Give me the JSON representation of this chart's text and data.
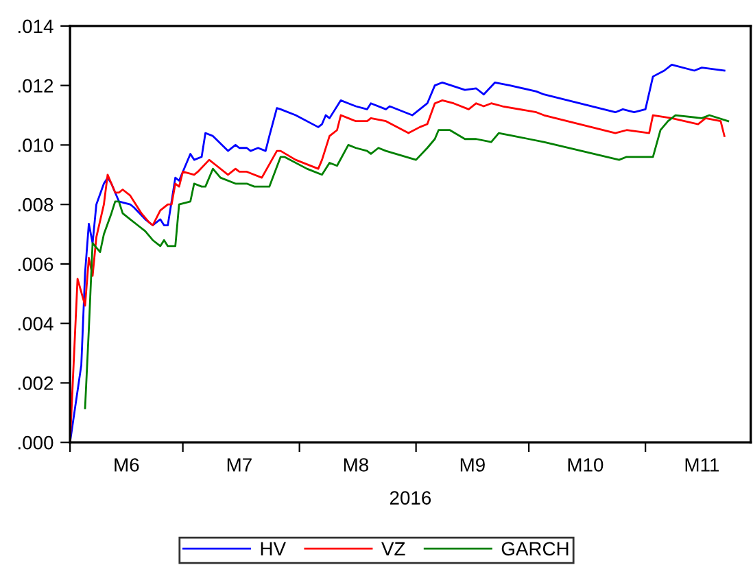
{
  "chart_data": {
    "type": "line",
    "xlabel": "2016",
    "xlim": [
      "2016-06-01",
      "2016-11-29"
    ],
    "ylim": [
      0,
      0.014
    ],
    "xticks": [
      {
        "value": "2016-06-01",
        "label": null
      },
      {
        "value": "2016-07-01",
        "label": null
      },
      {
        "value": "2016-08-01",
        "label": null
      },
      {
        "value": "2016-09-01",
        "label": null
      },
      {
        "value": "2016-10-01",
        "label": null
      },
      {
        "value": "2016-11-01",
        "label": null
      },
      {
        "value": "2016-06-16",
        "label": "M6"
      },
      {
        "value": "2016-07-16",
        "label": "M7"
      },
      {
        "value": "2016-08-16",
        "label": "M8"
      },
      {
        "value": "2016-09-16",
        "label": "M9"
      },
      {
        "value": "2016-10-16",
        "label": "M10"
      },
      {
        "value": "2016-11-16",
        "label": "M11"
      }
    ],
    "yticks": [
      {
        "value": 0,
        "label": ".000"
      },
      {
        "value": 0.002,
        "label": ".002"
      },
      {
        "value": 0.004,
        "label": ".004"
      },
      {
        "value": 0.006,
        "label": ".006"
      },
      {
        "value": 0.008,
        "label": ".008"
      },
      {
        "value": 0.01,
        "label": ".010"
      },
      {
        "value": 0.012,
        "label": ".012"
      },
      {
        "value": 0.014,
        "label": ".014"
      }
    ],
    "grid": false,
    "legend": "bottom",
    "marker": "none",
    "line_style": "solid",
    "series": [
      {
        "name": "HV",
        "color": "#0000ff",
        "x": [
          "2016-06-01",
          "2016-06-04",
          "2016-06-05",
          "2016-06-06",
          "2016-06-07",
          "2016-06-08",
          "2016-06-10",
          "2016-06-11",
          "2016-06-12",
          "2016-06-14",
          "2016-06-17",
          "2016-06-18",
          "2016-06-21",
          "2016-06-23",
          "2016-06-25",
          "2016-06-26",
          "2016-06-27",
          "2016-06-29",
          "2016-06-30",
          "2016-07-01",
          "2016-07-03",
          "2016-07-04",
          "2016-07-06",
          "2016-07-07",
          "2016-07-09",
          "2016-07-13",
          "2016-07-15",
          "2016-07-16",
          "2016-07-18",
          "2016-07-19",
          "2016-07-21",
          "2016-07-23",
          "2016-07-24",
          "2016-07-26",
          "2016-07-27",
          "2016-07-31",
          "2016-08-06",
          "2016-08-07",
          "2016-08-08",
          "2016-08-09",
          "2016-08-12",
          "2016-08-14",
          "2016-08-16",
          "2016-08-19",
          "2016-08-20",
          "2016-08-24",
          "2016-08-25",
          "2016-08-31",
          "2016-09-02",
          "2016-09-04",
          "2016-09-06",
          "2016-09-08",
          "2016-09-14",
          "2016-09-17",
          "2016-09-19",
          "2016-09-22",
          "2016-09-26",
          "2016-10-03",
          "2016-10-05",
          "2016-10-24",
          "2016-10-26",
          "2016-10-29",
          "2016-11-01",
          "2016-11-03",
          "2016-11-06",
          "2016-11-08",
          "2016-11-14",
          "2016-11-16",
          "2016-11-22"
        ],
        "values": [
          0.0,
          0.0026,
          0.0057,
          0.00735,
          0.0067,
          0.008,
          0.0087,
          0.0089,
          0.0087,
          0.0081,
          0.008,
          0.0079,
          0.0075,
          0.0073,
          0.0075,
          0.0073,
          0.0073,
          0.0089,
          0.0088,
          0.0091,
          0.0097,
          0.0095,
          0.0096,
          0.0104,
          0.0103,
          0.0098,
          0.01,
          0.0099,
          0.0099,
          0.0098,
          0.0099,
          0.0098,
          0.0103,
          0.01124,
          0.0112,
          0.011,
          0.0106,
          0.0107,
          0.011,
          0.0109,
          0.0115,
          0.0114,
          0.0113,
          0.0112,
          0.0114,
          0.0112,
          0.0113,
          0.011,
          0.0112,
          0.0114,
          0.012,
          0.0121,
          0.01185,
          0.0119,
          0.0117,
          0.0121,
          0.012,
          0.0118,
          0.0117,
          0.0111,
          0.0112,
          0.0111,
          0.0112,
          0.0123,
          0.0125,
          0.0127,
          0.0125,
          0.0126,
          0.0125
        ]
      },
      {
        "name": "VZ",
        "color": "#ff0000",
        "x": [
          "2016-06-01",
          "2016-06-03",
          "2016-06-05",
          "2016-06-06",
          "2016-06-07",
          "2016-06-08",
          "2016-06-10",
          "2016-06-11",
          "2016-06-13",
          "2016-06-14",
          "2016-06-15",
          "2016-06-17",
          "2016-06-20",
          "2016-06-22",
          "2016-06-23",
          "2016-06-25",
          "2016-06-27",
          "2016-06-28",
          "2016-06-29",
          "2016-06-30",
          "2016-07-01",
          "2016-07-04",
          "2016-07-05",
          "2016-07-08",
          "2016-07-10",
          "2016-07-13",
          "2016-07-15",
          "2016-07-16",
          "2016-07-18",
          "2016-07-22",
          "2016-07-26",
          "2016-07-27",
          "2016-07-31",
          "2016-08-06",
          "2016-08-07",
          "2016-08-09",
          "2016-08-11",
          "2016-08-12",
          "2016-08-14",
          "2016-08-16",
          "2016-08-19",
          "2016-08-20",
          "2016-08-24",
          "2016-08-30",
          "2016-09-02",
          "2016-09-04",
          "2016-09-06",
          "2016-09-08",
          "2016-09-11",
          "2016-09-15",
          "2016-09-17",
          "2016-09-19",
          "2016-09-21",
          "2016-09-24",
          "2016-10-03",
          "2016-10-05",
          "2016-10-24",
          "2016-10-27",
          "2016-11-02",
          "2016-11-03",
          "2016-11-08",
          "2016-11-15",
          "2016-11-17",
          "2016-11-21",
          "2016-11-22"
        ],
        "values": [
          0.0,
          0.0055,
          0.0046,
          0.0062,
          0.0056,
          0.0069,
          0.008,
          0.009,
          0.0084,
          0.0084,
          0.0085,
          0.0083,
          0.0077,
          0.0074,
          0.0073,
          0.0078,
          0.008,
          0.008,
          0.0087,
          0.0086,
          0.0091,
          0.009,
          0.0091,
          0.0095,
          0.0093,
          0.009,
          0.0092,
          0.0091,
          0.0091,
          0.0089,
          0.0098,
          0.0098,
          0.0095,
          0.0092,
          0.0095,
          0.0103,
          0.0105,
          0.011,
          0.0109,
          0.0108,
          0.0108,
          0.0109,
          0.0108,
          0.0104,
          0.0106,
          0.0107,
          0.0114,
          0.0115,
          0.0114,
          0.0112,
          0.0114,
          0.0113,
          0.0114,
          0.0113,
          0.0111,
          0.011,
          0.0104,
          0.0105,
          0.0104,
          0.011,
          0.0109,
          0.0107,
          0.0109,
          0.0108,
          0.0103
        ]
      },
      {
        "name": "GARCH",
        "color": "#008000",
        "x": [
          "2016-06-05",
          "2016-06-06",
          "2016-06-07",
          "2016-06-09",
          "2016-06-10",
          "2016-06-12",
          "2016-06-13",
          "2016-06-14",
          "2016-06-15",
          "2016-06-17",
          "2016-06-19",
          "2016-06-21",
          "2016-06-23",
          "2016-06-25",
          "2016-06-26",
          "2016-06-27",
          "2016-06-29",
          "2016-06-30",
          "2016-07-03",
          "2016-07-04",
          "2016-07-06",
          "2016-07-07",
          "2016-07-09",
          "2016-07-11",
          "2016-07-15",
          "2016-07-16",
          "2016-07-18",
          "2016-07-20",
          "2016-07-24",
          "2016-07-27",
          "2016-07-28",
          "2016-08-03",
          "2016-08-07",
          "2016-08-09",
          "2016-08-11",
          "2016-08-14",
          "2016-08-16",
          "2016-08-19",
          "2016-08-20",
          "2016-08-22",
          "2016-08-24",
          "2016-09-01",
          "2016-09-04",
          "2016-09-06",
          "2016-09-07",
          "2016-09-10",
          "2016-09-14",
          "2016-09-17",
          "2016-09-21",
          "2016-09-23",
          "2016-09-27",
          "2016-10-01",
          "2016-10-05",
          "2016-10-25",
          "2016-10-27",
          "2016-10-30",
          "2016-11-03",
          "2016-11-05",
          "2016-11-07",
          "2016-11-09",
          "2016-11-16",
          "2016-11-18",
          "2016-11-23"
        ],
        "values": [
          0.00115,
          0.0038,
          0.0067,
          0.0064,
          0.007,
          0.0077,
          0.0081,
          0.0081,
          0.0077,
          0.0075,
          0.0073,
          0.0071,
          0.0068,
          0.0066,
          0.0068,
          0.0066,
          0.0066,
          0.008,
          0.0081,
          0.0087,
          0.0086,
          0.0086,
          0.0092,
          0.0089,
          0.0087,
          0.0087,
          0.0087,
          0.0086,
          0.0086,
          0.0096,
          0.0096,
          0.0092,
          0.009,
          0.0094,
          0.0093,
          0.01,
          0.0099,
          0.0098,
          0.0097,
          0.0099,
          0.0098,
          0.0095,
          0.0099,
          0.0102,
          0.0105,
          0.0105,
          0.0102,
          0.0102,
          0.0101,
          0.0104,
          0.0103,
          0.0102,
          0.0101,
          0.0095,
          0.0096,
          0.0096,
          0.0096,
          0.0105,
          0.0108,
          0.011,
          0.0109,
          0.011,
          0.0108
        ]
      }
    ]
  }
}
